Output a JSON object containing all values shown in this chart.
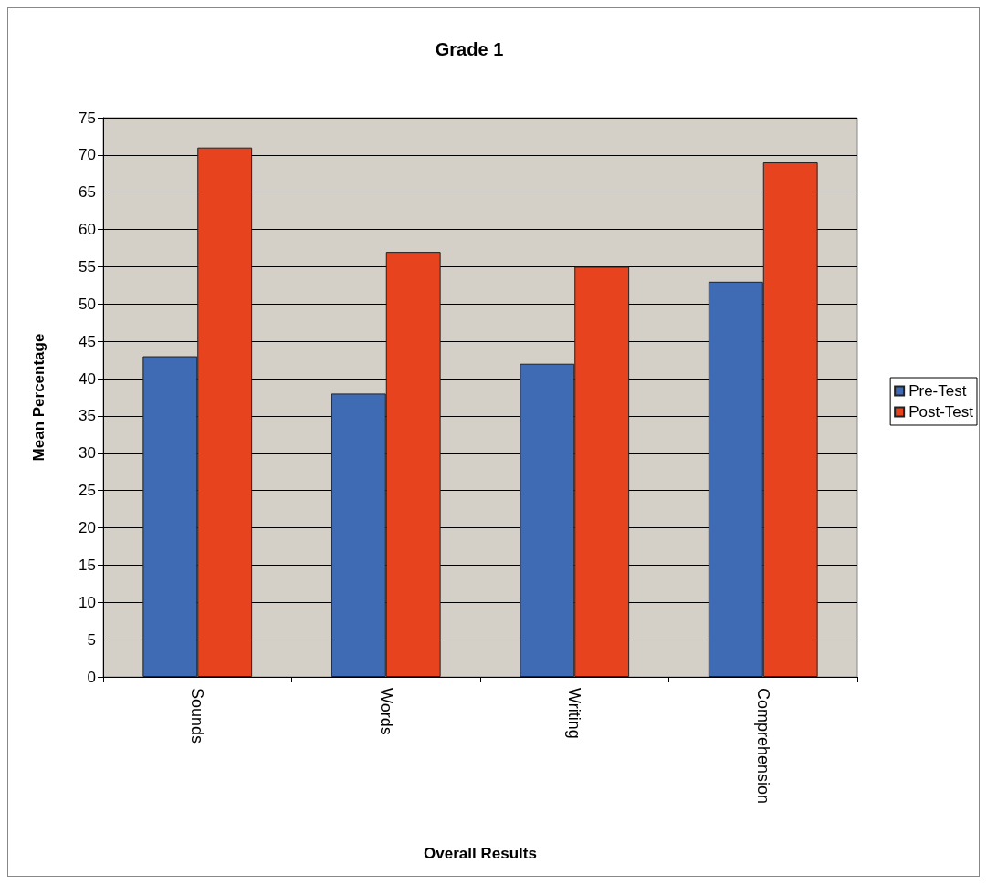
{
  "chart_data": {
    "type": "bar",
    "title": "Grade 1",
    "xlabel": "Overall Results",
    "ylabel": "Mean Percentage",
    "categories": [
      "Sounds",
      "Words",
      "Writing",
      "Comprehension"
    ],
    "series": [
      {
        "name": "Pre-Test",
        "color": "#3f6ab4",
        "values": [
          43,
          38,
          42,
          53
        ]
      },
      {
        "name": "Post-Test",
        "color": "#e8431f",
        "values": [
          71,
          57,
          55,
          69
        ]
      }
    ],
    "ylim": [
      0,
      75
    ],
    "yticks": [
      0,
      5,
      10,
      15,
      20,
      25,
      30,
      35,
      40,
      45,
      50,
      55,
      60,
      65,
      70,
      75
    ],
    "grid": "y",
    "legend": "right"
  }
}
